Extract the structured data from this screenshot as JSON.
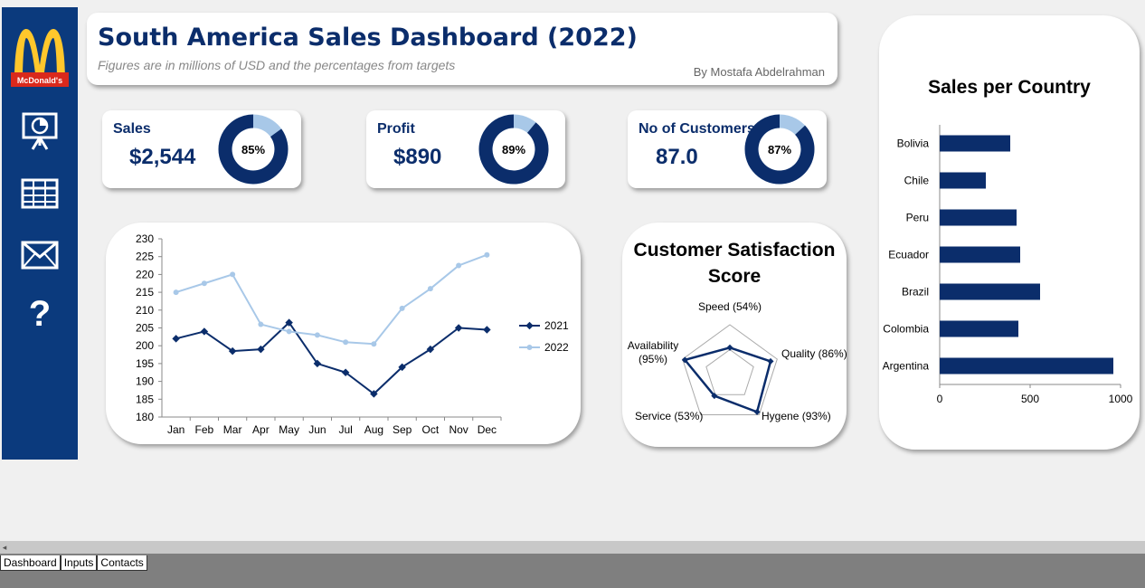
{
  "header": {
    "title": "South America Sales Dashboard (2022)",
    "subtitle": "Figures are in millions of USD and  the percentages from targets",
    "author": "By Mostafa Abdelrahman"
  },
  "brand": {
    "logo_text": "McDonald's",
    "sidebar_color": "#0b3a7d",
    "logo_yellow": "#ffc72c",
    "logo_red": "#da291c"
  },
  "sidebar": {
    "icons": [
      "presentation-chart-icon",
      "table-grid-icon",
      "mail-envelope-icon",
      "help-question-icon"
    ]
  },
  "kpis": [
    {
      "label": "Sales",
      "value": "$2,544",
      "percent": 85,
      "percent_label": "85%"
    },
    {
      "label": "Profit",
      "value": "$890",
      "percent": 89,
      "percent_label": "89%"
    },
    {
      "label": "No of Customers",
      "value": "87.0",
      "percent": 87,
      "percent_label": "87%"
    }
  ],
  "colors": {
    "dark": "#0b2d6b",
    "light": "#a8c8e8"
  },
  "chart_data": [
    {
      "type": "line",
      "title": "",
      "categories": [
        "Jan",
        "Feb",
        "Mar",
        "Apr",
        "May",
        "Jun",
        "Jul",
        "Aug",
        "Sep",
        "Oct",
        "Nov",
        "Dec"
      ],
      "series": [
        {
          "name": "2021",
          "values": [
            202,
            204,
            198.5,
            199,
            206.5,
            195,
            192.5,
            186.5,
            194,
            199,
            205,
            204.5
          ]
        },
        {
          "name": "2022",
          "values": [
            215,
            217.5,
            220,
            206,
            204,
            203,
            201,
            200.5,
            210.5,
            216,
            222.5,
            225.5
          ]
        }
      ],
      "ylim": [
        180,
        230
      ],
      "yticks": [
        180,
        185,
        190,
        195,
        200,
        205,
        210,
        215,
        220,
        225,
        230
      ],
      "legend": "right"
    },
    {
      "type": "radar",
      "title": "Customer Satisfaction Score",
      "categories": [
        "Speed (54%)",
        "Quality (86%)",
        "Hygene (93%)",
        "Service (53%)",
        "Availability (95%)"
      ],
      "values": [
        54,
        86,
        93,
        53,
        95
      ]
    },
    {
      "type": "bar",
      "orientation": "horizontal",
      "title": "Sales per Country",
      "categories": [
        "Bolivia",
        "Chile",
        "Peru",
        "Ecuador",
        "Brazil",
        "Colombia",
        "Argentina"
      ],
      "values": [
        390,
        255,
        425,
        445,
        555,
        435,
        960
      ],
      "xlim": [
        0,
        1000
      ],
      "xticks": [
        "0",
        "500",
        "1000"
      ]
    }
  ],
  "sheet_tabs": [
    "Dashboard",
    "Inputs",
    "Contacts"
  ]
}
